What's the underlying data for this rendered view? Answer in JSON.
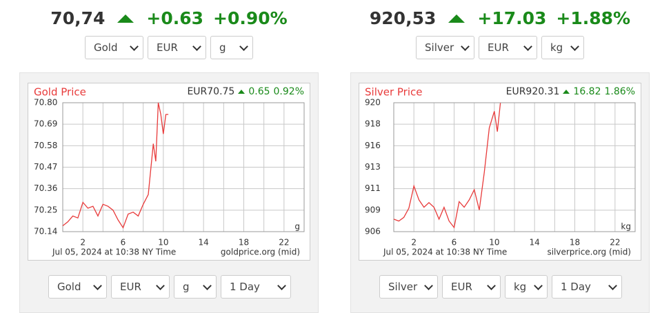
{
  "panels": [
    {
      "header": {
        "price": "70,74",
        "change": "+0.63",
        "change_pct": "+0.90%"
      },
      "selects": [
        "Gold",
        "EUR",
        "g"
      ],
      "bottom_selects": [
        "Gold",
        "EUR",
        "g",
        "1 Day"
      ]
    },
    {
      "header": {
        "price": "920,53",
        "change": "+17.03",
        "change_pct": "+1.88%"
      },
      "selects": [
        "Silver",
        "EUR",
        "kg"
      ],
      "bottom_selects": [
        "Silver",
        "EUR",
        "kg",
        "1 Day"
      ]
    }
  ],
  "chart_data": [
    {
      "type": "line",
      "title": "Gold Price",
      "quote": "EUR70.75",
      "change": "0.65",
      "change_pct": "0.92%",
      "unit": "g",
      "timestamp": "Jul 05, 2024 at 10:38 NY Time",
      "source": "goldprice.org (mid)",
      "x": [
        0,
        0.5,
        1,
        1.5,
        2,
        2.5,
        3,
        3.5,
        4,
        4.5,
        5,
        5.5,
        6,
        6.5,
        7,
        7.5,
        8,
        8.5,
        9,
        9.25,
        9.5,
        9.75,
        10,
        10.25,
        10.5
      ],
      "values": [
        70.17,
        70.19,
        70.22,
        70.21,
        70.29,
        70.26,
        70.27,
        70.22,
        70.28,
        70.27,
        70.25,
        70.2,
        70.16,
        70.23,
        70.24,
        70.22,
        70.28,
        70.33,
        70.59,
        70.5,
        70.8,
        70.74,
        70.64,
        70.74,
        70.74
      ],
      "color": "#e83a3a",
      "xlim": [
        0,
        24
      ],
      "xticks": [
        2,
        6,
        10,
        14,
        18,
        22
      ],
      "xminor": [
        4,
        8,
        12,
        16,
        20
      ],
      "ylim": [
        70.14,
        70.8
      ],
      "yticks": [
        70.14,
        70.25,
        70.36,
        70.47,
        70.58,
        70.69,
        {
          "value": 70.8,
          "label": "70.80"
        }
      ],
      "grid": true
    },
    {
      "type": "line",
      "title": "Silver Price",
      "quote": "EUR920.31",
      "change": "16.82",
      "change_pct": "1.86%",
      "unit": "kg",
      "timestamp": "Jul 05, 2024 at 10:38 NY Time",
      "source": "silverprice.org (mid)",
      "x": [
        0,
        0.5,
        1,
        1.5,
        2,
        2.5,
        3,
        3.5,
        4,
        4.5,
        5,
        5.5,
        6,
        6.5,
        7,
        7.5,
        8,
        8.5,
        9,
        9.5,
        10,
        10.3,
        10.6
      ],
      "values": [
        907.8,
        907.6,
        908,
        909,
        911.4,
        909.9,
        909.1,
        909.6,
        909.1,
        907.8,
        909.1,
        907.6,
        906.9,
        909.7,
        909.1,
        909.9,
        911,
        908.8,
        912.9,
        917.7,
        919.5,
        917.3,
        920.4
      ],
      "color": "#e83a3a",
      "xlim": [
        0,
        24
      ],
      "xticks": [
        2,
        6,
        10,
        14,
        18,
        22
      ],
      "xminor": [
        4,
        8,
        12,
        16,
        20
      ],
      "ylim": [
        906.45,
        920.43
      ],
      "yticks": [
        {
          "value": 906.45,
          "label": "906"
        },
        {
          "value": 908.78,
          "label": "909"
        },
        {
          "value": 911.11,
          "label": "911"
        },
        {
          "value": 913.44,
          "label": "913"
        },
        {
          "value": 915.77,
          "label": "916"
        },
        {
          "value": 918.1,
          "label": "918"
        },
        {
          "value": 920.43,
          "label": "920"
        }
      ],
      "grid": true
    }
  ]
}
